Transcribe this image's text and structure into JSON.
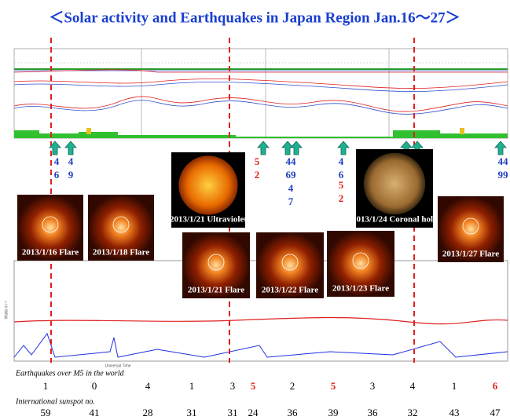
{
  "title": "＜Solar activity and Earthquakes in Japan Region Jan.16～27＞",
  "images": [
    {
      "caption": "2013/1/16 Flare",
      "kind": "flare"
    },
    {
      "caption": "2013/1/18 Flare",
      "kind": "flare"
    },
    {
      "caption": "2013/1/21 Ultraviolet",
      "kind": "sun"
    },
    {
      "caption": "2013/1/24 Coronal hole",
      "kind": "hole"
    },
    {
      "caption": "2013/1/27 Flare",
      "kind": "flare"
    },
    {
      "caption": "2013/1/21 Flare",
      "kind": "flare"
    },
    {
      "caption": "2013/1/22 Flare",
      "kind": "flare"
    },
    {
      "caption": "2013/1/23 Flare",
      "kind": "flare"
    }
  ],
  "quake_labels": [
    {
      "lines": [
        "4",
        "6"
      ],
      "color": "#1f3fbf"
    },
    {
      "lines": [
        "4",
        "9"
      ],
      "color": "#1f3fbf"
    },
    {
      "lines": [
        "5",
        "2"
      ],
      "color": "#e0201c"
    },
    {
      "lines": [
        "44",
        "69",
        "4",
        "7"
      ],
      "color": "#1f3fbf"
    },
    {
      "lines": [
        "4",
        "6"
      ],
      "color": "#1f3fbf"
    },
    {
      "lines": [
        "5",
        "2"
      ],
      "color": "#e0201c"
    },
    {
      "lines": [
        "44",
        "99"
      ],
      "color": "#1f3fbf"
    }
  ],
  "earthquakes": {
    "label": "Earthquakes over M5 in the world",
    "values": [
      1,
      0,
      4,
      1,
      3,
      5,
      2,
      5,
      3,
      4,
      1,
      6
    ],
    "colors": [
      "#000",
      "#000",
      "#000",
      "#000",
      "#000",
      "#e0201c",
      "#000",
      "#e0201c",
      "#000",
      "#000",
      "#000",
      "#e0201c"
    ]
  },
  "sunspots": {
    "label": "International sunspot no.",
    "values": [
      59,
      41,
      28,
      31,
      31,
      24,
      36,
      39,
      36,
      32,
      43,
      47
    ]
  },
  "axis": {
    "x_title": "Universal Time",
    "y_title": "Watts m⁻²"
  }
}
